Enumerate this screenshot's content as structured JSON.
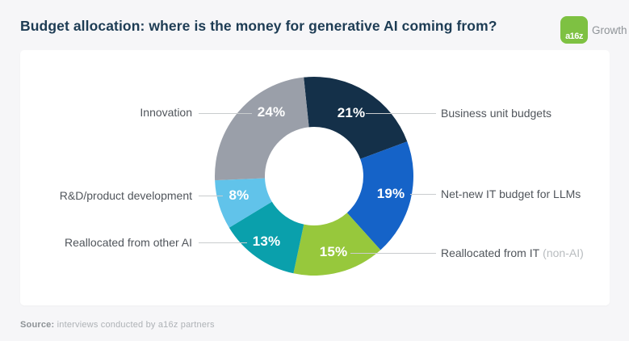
{
  "header": {
    "title": "Budget allocation: where is the money for generative AI coming from?",
    "logo": {
      "mark": "a16z",
      "wordmark": "Growth"
    }
  },
  "chart_data": {
    "type": "pie",
    "donut": true,
    "title": "Budget allocation: where is the money for generative AI coming from?",
    "start_angle_deg": -6,
    "inner_radius_ratio": 0.5,
    "value_suffix": "%",
    "legend_position": "callout-labels-left-right",
    "slices": [
      {
        "label": "Business unit budgets",
        "value": 21,
        "color": "#143049",
        "side": "right"
      },
      {
        "label": "Net-new IT budget for LLMs",
        "value": 19,
        "color": "#1563c8",
        "side": "right"
      },
      {
        "label": "Reallocated from IT",
        "label_suffix": "(non-AI)",
        "value": 15,
        "color": "#97c83c",
        "side": "right"
      },
      {
        "label": "Reallocated from other AI",
        "value": 13,
        "color": "#0aa0ac",
        "side": "left"
      },
      {
        "label": "R&D/product development",
        "value": 8,
        "color": "#61c3ea",
        "side": "left"
      },
      {
        "label": "Innovation",
        "value": 24,
        "color": "#9a9fa9",
        "side": "left"
      }
    ]
  },
  "footer": {
    "source_label": "Source:",
    "source_text": " interviews conducted by a16z partners"
  },
  "theme": {
    "page_background": "#f6f6f8",
    "card_background": "#ffffff",
    "title_color": "#1d3c54",
    "label_color": "#50555b",
    "muted_label_color": "#b8bcbf",
    "leader_line_color": "#c9ccce",
    "percent_label_color": "#ffffff",
    "source_label_color": "#8d9296",
    "source_text_color": "#aeb2b6",
    "logo_green": "#7ec142",
    "logo_text_color": "#8f9498"
  }
}
